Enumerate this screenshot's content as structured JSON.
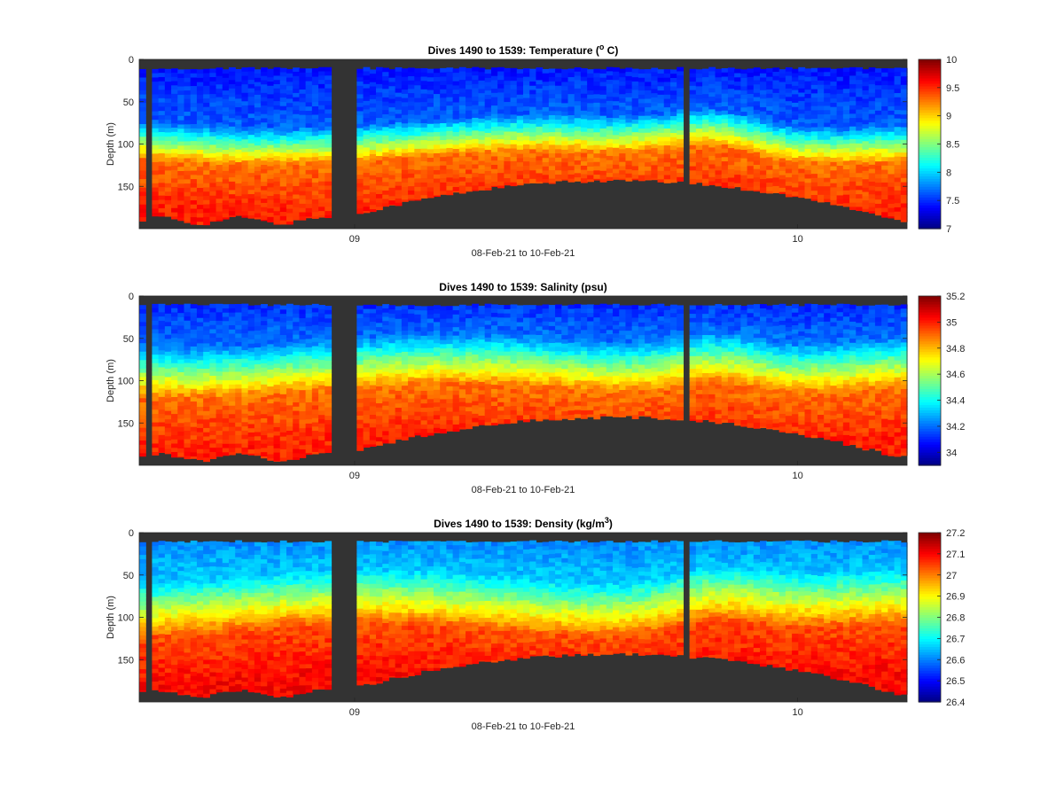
{
  "figure": {
    "colormap": "jet",
    "mask_color": "#333333",
    "axis_color": "#262626",
    "background": "#ffffff"
  },
  "chart_data": [
    {
      "type": "heatmap",
      "title_main": "Dives 1490 to 1539: Temperature (",
      "title_sup": "o",
      "title_tail": " C)",
      "ylabel": "Depth (m)",
      "xlabel": "08-Feb-21 to 10-Feb-21",
      "yticks": [
        0,
        50,
        100,
        150
      ],
      "y_reversed": true,
      "ylim": [
        0,
        200
      ],
      "xticks": [
        {
          "label": "09",
          "t": 0.2805
        },
        {
          "label": "10",
          "t": 0.8575
        }
      ],
      "clim": [
        7,
        10
      ],
      "cticks": [
        7,
        7.5,
        8,
        8.5,
        9,
        9.5,
        10
      ],
      "profile": {
        "shallow": 7.4,
        "thermocline_top": 70,
        "thermocline_bottom": 115,
        "deep": 9.55
      }
    },
    {
      "type": "heatmap",
      "title_main": "Dives 1490 to 1539: Salinity (psu)",
      "title_sup": "",
      "title_tail": "",
      "ylabel": "Depth (m)",
      "xlabel": "08-Feb-21 to 10-Feb-21",
      "yticks": [
        0,
        50,
        100,
        150
      ],
      "y_reversed": true,
      "ylim": [
        0,
        200
      ],
      "xticks": [
        {
          "label": "09",
          "t": 0.2805
        },
        {
          "label": "10",
          "t": 0.8575
        }
      ],
      "clim": [
        33.9,
        35.2
      ],
      "cticks": [
        34,
        34.2,
        34.4,
        34.6,
        34.8,
        35,
        35.2
      ],
      "profile": {
        "shallow": 34.1,
        "thermocline_top": 50,
        "thermocline_bottom": 110,
        "deep": 35.0
      }
    },
    {
      "type": "heatmap",
      "title_main": "Dives 1490 to 1539: Density (kg/m",
      "title_sup": "3",
      "title_tail": ")",
      "ylabel": "Depth (m)",
      "xlabel": "08-Feb-21 to 10-Feb-21",
      "yticks": [
        0,
        50,
        100,
        150
      ],
      "y_reversed": true,
      "ylim": [
        0,
        200
      ],
      "xticks": [
        {
          "label": "09",
          "t": 0.2805
        },
        {
          "label": "10",
          "t": 0.8575
        }
      ],
      "clim": [
        26.4,
        27.2
      ],
      "cticks": [
        26.4,
        26.5,
        26.6,
        26.7,
        26.8,
        26.9,
        27,
        27.1,
        27.2
      ],
      "profile": {
        "shallow": 26.6,
        "thermocline_top": 50,
        "thermocline_bottom": 115,
        "deep": 27.1
      }
    }
  ]
}
